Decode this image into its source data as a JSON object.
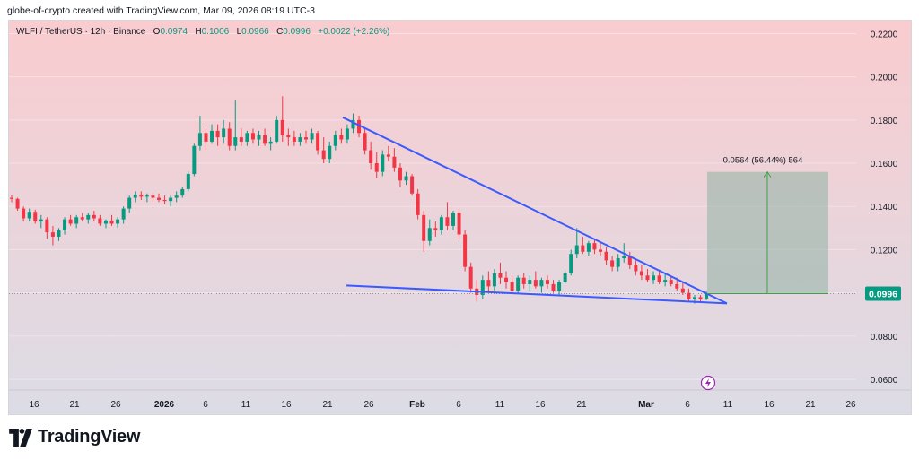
{
  "caption": "globe-of-crypto created with TradingView.com, Mar 09, 2026 08:19 UTC-3",
  "legend": {
    "symbol": "WLFI / TetherUS · 12h · Binance",
    "o_label": "O",
    "o_value": "0.0974",
    "h_label": "H",
    "h_value": "0.1006",
    "l_label": "L",
    "l_value": "0.0966",
    "c_label": "C",
    "c_value": "0.0996",
    "change": "+0.0022 (+2.26%)"
  },
  "brand": {
    "name": "TradingView",
    "icon": "tradingview-logo"
  },
  "colors": {
    "up": "#089981",
    "down": "#f23645",
    "trendline": "#3d5afe",
    "projection_fill": "#8fb3a4",
    "projection_line": "#43a047",
    "price_label_bg": "#089981",
    "bg_top": "#f9cccf",
    "bg_bottom": "#dcdce6"
  },
  "chart_data": {
    "type": "candlestick",
    "pair": "WLFI / TetherUS",
    "interval": "12h",
    "exchange": "Binance",
    "ylim": [
      0.055,
      0.226
    ],
    "y_ticks": [
      "0.2200",
      "0.2000",
      "0.1800",
      "0.1600",
      "0.1400",
      "0.1200",
      "0.1000",
      "0.0800",
      "0.0600"
    ],
    "x_ticks": [
      "16",
      "21",
      "26",
      "2026",
      "6",
      "11",
      "16",
      "21",
      "26",
      "Feb",
      "6",
      "11",
      "16",
      "21",
      "Mar",
      "6",
      "11",
      "16",
      "21",
      "26"
    ],
    "last_price": "0.0996",
    "measure_label": "0.0564 (56.44%) 564",
    "measure": {
      "from": 0.0996,
      "to": 0.156
    },
    "candles": [
      [
        0.144,
        0.145,
        0.142,
        0.1435
      ],
      [
        0.1435,
        0.144,
        0.138,
        0.139
      ],
      [
        0.139,
        0.14,
        0.133,
        0.1345
      ],
      [
        0.1345,
        0.139,
        0.133,
        0.1375
      ],
      [
        0.1375,
        0.1385,
        0.132,
        0.133
      ],
      [
        0.133,
        0.136,
        0.13,
        0.134
      ],
      [
        0.134,
        0.135,
        0.125,
        0.128
      ],
      [
        0.128,
        0.131,
        0.122,
        0.126
      ],
      [
        0.126,
        0.13,
        0.124,
        0.129
      ],
      [
        0.129,
        0.135,
        0.127,
        0.134
      ],
      [
        0.134,
        0.136,
        0.131,
        0.132
      ],
      [
        0.132,
        0.136,
        0.13,
        0.135
      ],
      [
        0.135,
        0.137,
        0.133,
        0.134
      ],
      [
        0.134,
        0.137,
        0.132,
        0.136
      ],
      [
        0.136,
        0.138,
        0.133,
        0.1345
      ],
      [
        0.1345,
        0.136,
        0.131,
        0.132
      ],
      [
        0.132,
        0.134,
        0.13,
        0.1335
      ],
      [
        0.1335,
        0.136,
        0.131,
        0.132
      ],
      [
        0.132,
        0.135,
        0.13,
        0.134
      ],
      [
        0.134,
        0.14,
        0.132,
        0.139
      ],
      [
        0.139,
        0.145,
        0.137,
        0.144
      ],
      [
        0.144,
        0.147,
        0.142,
        0.1455
      ],
      [
        0.1455,
        0.147,
        0.143,
        0.1445
      ],
      [
        0.1445,
        0.146,
        0.142,
        0.145
      ],
      [
        0.145,
        0.146,
        0.142,
        0.144
      ],
      [
        0.144,
        0.146,
        0.142,
        0.143
      ],
      [
        0.143,
        0.145,
        0.141,
        0.1425
      ],
      [
        0.1425,
        0.145,
        0.14,
        0.144
      ],
      [
        0.144,
        0.147,
        0.142,
        0.145
      ],
      [
        0.145,
        0.149,
        0.144,
        0.148
      ],
      [
        0.148,
        0.156,
        0.147,
        0.155
      ],
      [
        0.155,
        0.169,
        0.154,
        0.168
      ],
      [
        0.168,
        0.182,
        0.166,
        0.174
      ],
      [
        0.174,
        0.176,
        0.166,
        0.17
      ],
      [
        0.17,
        0.178,
        0.169,
        0.175
      ],
      [
        0.175,
        0.178,
        0.168,
        0.172
      ],
      [
        0.172,
        0.18,
        0.169,
        0.176
      ],
      [
        0.176,
        0.179,
        0.166,
        0.168
      ],
      [
        0.168,
        0.189,
        0.166,
        0.172
      ],
      [
        0.172,
        0.176,
        0.168,
        0.17
      ],
      [
        0.17,
        0.175,
        0.168,
        0.174
      ],
      [
        0.174,
        0.176,
        0.169,
        0.171
      ],
      [
        0.171,
        0.175,
        0.168,
        0.173
      ],
      [
        0.173,
        0.176,
        0.168,
        0.169
      ],
      [
        0.169,
        0.172,
        0.166,
        0.17
      ],
      [
        0.17,
        0.182,
        0.169,
        0.18
      ],
      [
        0.18,
        0.191,
        0.17,
        0.173
      ],
      [
        0.173,
        0.176,
        0.168,
        0.172
      ],
      [
        0.172,
        0.175,
        0.168,
        0.17
      ],
      [
        0.17,
        0.174,
        0.168,
        0.172
      ],
      [
        0.172,
        0.175,
        0.169,
        0.171
      ],
      [
        0.171,
        0.176,
        0.169,
        0.174
      ],
      [
        0.174,
        0.175,
        0.164,
        0.166
      ],
      [
        0.166,
        0.172,
        0.16,
        0.162
      ],
      [
        0.162,
        0.17,
        0.16,
        0.168
      ],
      [
        0.168,
        0.175,
        0.166,
        0.173
      ],
      [
        0.173,
        0.176,
        0.169,
        0.171
      ],
      [
        0.171,
        0.178,
        0.169,
        0.176
      ],
      [
        0.176,
        0.183,
        0.174,
        0.18
      ],
      [
        0.18,
        0.182,
        0.172,
        0.174
      ],
      [
        0.174,
        0.176,
        0.164,
        0.166
      ],
      [
        0.166,
        0.17,
        0.157,
        0.16
      ],
      [
        0.16,
        0.165,
        0.153,
        0.156
      ],
      [
        0.156,
        0.166,
        0.154,
        0.164
      ],
      [
        0.164,
        0.168,
        0.161,
        0.163
      ],
      [
        0.163,
        0.167,
        0.156,
        0.158
      ],
      [
        0.158,
        0.16,
        0.149,
        0.152
      ],
      [
        0.152,
        0.156,
        0.15,
        0.154
      ],
      [
        0.154,
        0.155,
        0.145,
        0.146
      ],
      [
        0.146,
        0.148,
        0.134,
        0.136
      ],
      [
        0.136,
        0.138,
        0.119,
        0.124
      ],
      [
        0.124,
        0.134,
        0.122,
        0.13
      ],
      [
        0.13,
        0.133,
        0.126,
        0.129
      ],
      [
        0.129,
        0.136,
        0.127,
        0.135
      ],
      [
        0.135,
        0.142,
        0.129,
        0.131
      ],
      [
        0.131,
        0.138,
        0.129,
        0.137
      ],
      [
        0.137,
        0.139,
        0.125,
        0.127
      ],
      [
        0.127,
        0.129,
        0.11,
        0.112
      ],
      [
        0.112,
        0.114,
        0.1,
        0.102
      ],
      [
        0.102,
        0.106,
        0.096,
        0.099
      ],
      [
        0.099,
        0.108,
        0.097,
        0.106
      ],
      [
        0.106,
        0.11,
        0.1,
        0.103
      ],
      [
        0.103,
        0.111,
        0.101,
        0.109
      ],
      [
        0.109,
        0.114,
        0.104,
        0.107
      ],
      [
        0.107,
        0.11,
        0.102,
        0.105
      ],
      [
        0.105,
        0.108,
        0.1,
        0.101
      ],
      [
        0.101,
        0.108,
        0.1,
        0.107
      ],
      [
        0.107,
        0.109,
        0.102,
        0.104
      ],
      [
        0.104,
        0.108,
        0.101,
        0.106
      ],
      [
        0.106,
        0.11,
        0.102,
        0.103
      ],
      [
        0.103,
        0.107,
        0.1,
        0.106
      ],
      [
        0.106,
        0.108,
        0.102,
        0.104
      ],
      [
        0.104,
        0.106,
        0.1,
        0.101
      ],
      [
        0.101,
        0.106,
        0.099,
        0.105
      ],
      [
        0.105,
        0.11,
        0.104,
        0.109
      ],
      [
        0.109,
        0.12,
        0.108,
        0.118
      ],
      [
        0.118,
        0.13,
        0.116,
        0.122
      ],
      [
        0.122,
        0.126,
        0.118,
        0.119
      ],
      [
        0.119,
        0.124,
        0.117,
        0.123
      ],
      [
        0.123,
        0.125,
        0.118,
        0.12
      ],
      [
        0.12,
        0.123,
        0.117,
        0.119
      ],
      [
        0.119,
        0.121,
        0.113,
        0.115
      ],
      [
        0.115,
        0.117,
        0.11,
        0.112
      ],
      [
        0.112,
        0.118,
        0.11,
        0.116
      ],
      [
        0.116,
        0.123,
        0.114,
        0.117
      ],
      [
        0.117,
        0.119,
        0.111,
        0.113
      ],
      [
        0.113,
        0.115,
        0.108,
        0.11
      ],
      [
        0.11,
        0.113,
        0.106,
        0.108
      ],
      [
        0.108,
        0.111,
        0.105,
        0.106
      ],
      [
        0.106,
        0.11,
        0.104,
        0.108
      ],
      [
        0.108,
        0.11,
        0.104,
        0.105
      ],
      [
        0.105,
        0.109,
        0.103,
        0.106
      ],
      [
        0.106,
        0.108,
        0.103,
        0.104
      ],
      [
        0.104,
        0.107,
        0.101,
        0.102
      ],
      [
        0.102,
        0.105,
        0.099,
        0.1
      ],
      [
        0.1,
        0.102,
        0.096,
        0.097
      ],
      [
        0.097,
        0.099,
        0.095,
        0.098
      ],
      [
        0.098,
        0.099,
        0.096,
        0.097
      ],
      [
        0.0974,
        0.1006,
        0.0966,
        0.0996
      ]
    ]
  }
}
